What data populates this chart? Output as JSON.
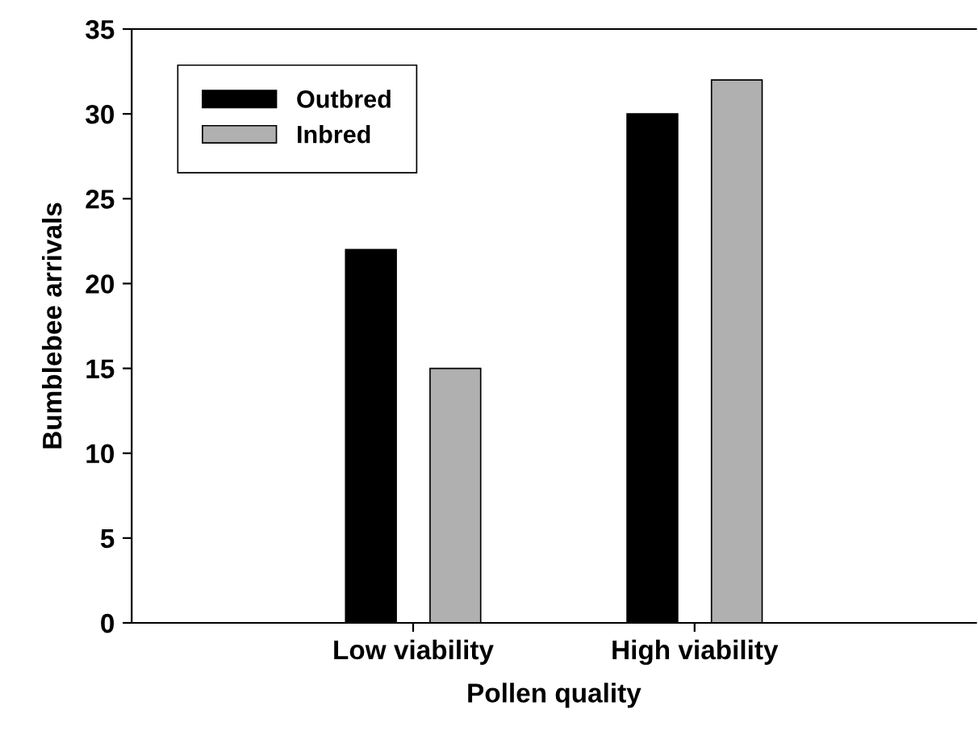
{
  "chart_data": {
    "type": "bar",
    "xlabel": "Pollen quality",
    "ylabel": "Bumblebee arrivals",
    "categories": [
      "Low viability",
      "High viability"
    ],
    "series": [
      {
        "name": "Outbred",
        "color": "#000000",
        "values": [
          22,
          30
        ]
      },
      {
        "name": "Inbred",
        "color": "#b0b0b0",
        "values": [
          15,
          32
        ]
      }
    ],
    "ylim": [
      0,
      35
    ],
    "yticks": [
      0,
      5,
      10,
      15,
      20,
      25,
      30,
      35
    ],
    "grid": false,
    "legend": "top left"
  }
}
